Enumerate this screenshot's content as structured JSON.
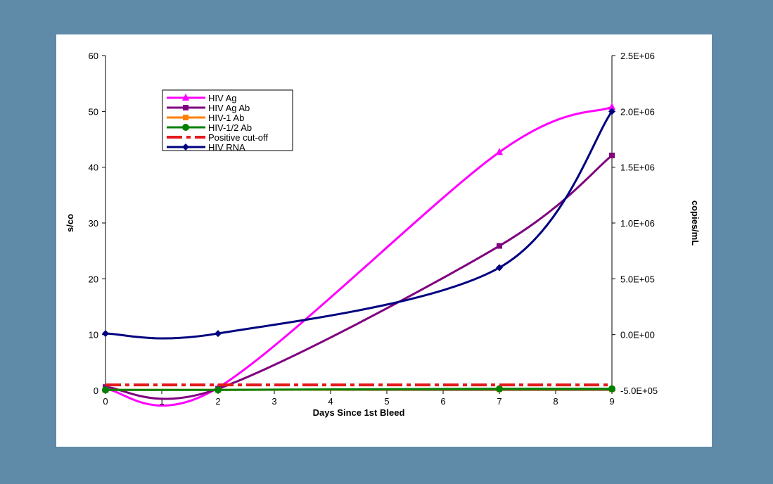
{
  "chart_data": {
    "type": "line",
    "title": "",
    "xlabel": "Days Since 1st Bleed",
    "ylabel": "s/co",
    "y2label": "copies/mL",
    "xlim": [
      0,
      9
    ],
    "ylim": [
      0,
      60
    ],
    "y2lim": [
      -500000,
      2500000
    ],
    "x_ticks": [
      "0",
      "1",
      "2",
      "3",
      "4",
      "5",
      "6",
      "7",
      "8",
      "9"
    ],
    "y_ticks": [
      "0",
      "10",
      "20",
      "30",
      "40",
      "50",
      "60"
    ],
    "y2_ticks": [
      "-5.0E+05",
      "0.0E+00",
      "5.0E+05",
      "1.0E+06",
      "1.5E+06",
      "2.0E+06",
      "2.5E+06"
    ],
    "grid": false,
    "legend": "top-left",
    "series": [
      {
        "name": "HIV Ag",
        "axis": "left",
        "color": "#ff00ff",
        "marker": "triangle",
        "x": [
          0,
          2,
          7,
          9
        ],
        "y": [
          0.2,
          0.5,
          42.7,
          50.8
        ]
      },
      {
        "name": "HIV Ag Ab",
        "axis": "left",
        "color": "#800080",
        "marker": "square",
        "x": [
          0,
          2,
          7,
          9
        ],
        "y": [
          0.6,
          0.3,
          25.9,
          42.1
        ]
      },
      {
        "name": "HIV-1 Ab",
        "axis": "left",
        "color": "#ff8000",
        "marker": "square",
        "x": [
          0,
          2,
          7,
          9
        ],
        "y": [
          0.1,
          0.1,
          0.2,
          0.2
        ]
      },
      {
        "name": "HIV-1/2 Ab",
        "axis": "left",
        "color": "#008000",
        "marker": "circle",
        "x": [
          0,
          2,
          7,
          9
        ],
        "y": [
          0.1,
          0.1,
          0.3,
          0.3
        ]
      },
      {
        "name": "Positive cut-off",
        "axis": "left",
        "color": "#e41a1c",
        "marker": "none",
        "dash": true,
        "x": [
          0,
          9
        ],
        "y": [
          1,
          1
        ]
      },
      {
        "name": "HIV RNA",
        "axis": "right",
        "color": "#000080",
        "marker": "diamond",
        "x": [
          0,
          2,
          7,
          9
        ],
        "y": [
          10000,
          10000,
          600000,
          2000000
        ]
      }
    ]
  }
}
